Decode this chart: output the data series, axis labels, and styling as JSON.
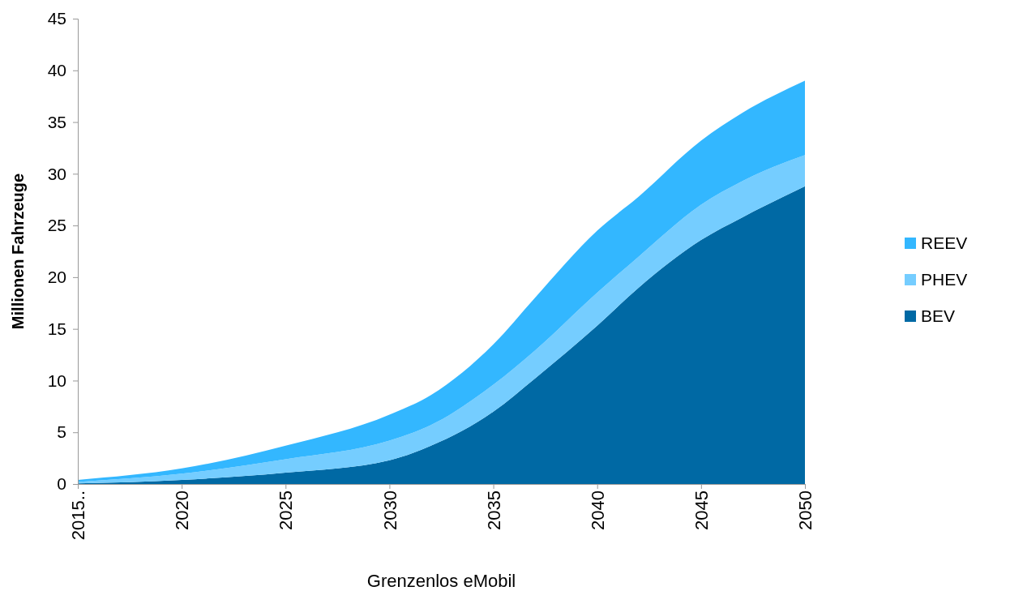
{
  "chart_data": {
    "type": "area",
    "stacked": true,
    "xlabel": "Grenzenlos eMobil",
    "ylabel": "Millionen Fahrzeuge",
    "x": [
      2015,
      2020,
      2025,
      2030,
      2032,
      2035,
      2037,
      2040,
      2042,
      2045,
      2047,
      2050
    ],
    "series": [
      {
        "name": "BEV",
        "color": "#0069a4",
        "values": [
          0.05,
          0.4,
          1.1,
          2.3,
          3.7,
          7.0,
          10.2,
          15.3,
          19.0,
          23.6,
          25.8,
          28.8
        ]
      },
      {
        "name": "PHEV",
        "color": "#75cdff",
        "values": [
          0.15,
          0.6,
          1.3,
          1.9,
          2.0,
          2.6,
          2.7,
          3.2,
          3.0,
          3.4,
          3.5,
          3.0
        ]
      },
      {
        "name": "REEV",
        "color": "#33b7ff",
        "values": [
          0.2,
          0.5,
          1.3,
          2.5,
          2.9,
          3.9,
          5.1,
          6.0,
          5.8,
          6.2,
          6.6,
          7.2
        ]
      }
    ],
    "xlim": [
      2015,
      2050
    ],
    "xticks": [
      {
        "value": 2015,
        "label": "2015.."
      },
      2020,
      2025,
      2030,
      2035,
      2040,
      2045,
      2050
    ],
    "ylim": [
      0,
      45
    ],
    "yticks": [
      0,
      5,
      10,
      15,
      20,
      25,
      30,
      35,
      40,
      45
    ],
    "legend": "right",
    "grid": false
  }
}
